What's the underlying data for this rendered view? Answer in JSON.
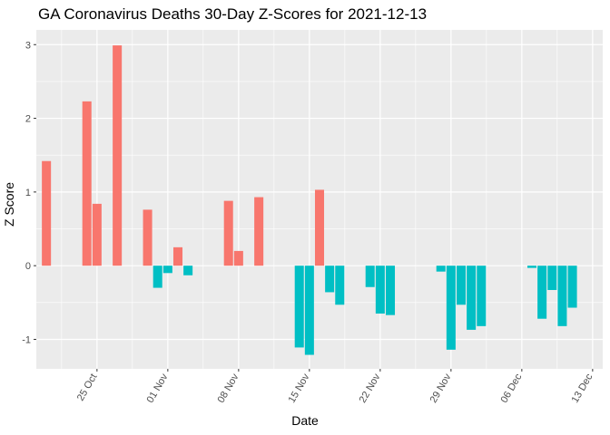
{
  "chart_data": {
    "type": "bar",
    "title": "GA Coronavirus Deaths 30-Day Z-Scores for 2021-12-13",
    "xlabel": "Date",
    "ylabel": "Z Score",
    "x_ticks": [
      {
        "date": "2021-10-25",
        "label": "25 Oct"
      },
      {
        "date": "2021-11-01",
        "label": "01 Nov"
      },
      {
        "date": "2021-11-08",
        "label": "08 Nov"
      },
      {
        "date": "2021-11-15",
        "label": "15 Nov"
      },
      {
        "date": "2021-11-22",
        "label": "22 Nov"
      },
      {
        "date": "2021-11-29",
        "label": "29 Nov"
      },
      {
        "date": "2021-12-06",
        "label": "06 Dec"
      },
      {
        "date": "2021-12-13",
        "label": "13 Dec"
      }
    ],
    "xlim": [
      "2021-10-19",
      "2021-12-14"
    ],
    "y_ticks": [
      -1,
      0,
      1,
      2,
      3
    ],
    "ylim": [
      -1.4,
      3.2
    ],
    "grid": true,
    "colors": {
      "positive": "#f8766d",
      "negative": "#00bfc4",
      "panel": "#ebebeb",
      "grid": "#ffffff"
    },
    "points": [
      {
        "date": "2021-10-20",
        "value": 1.42
      },
      {
        "date": "2021-10-24",
        "value": 2.23
      },
      {
        "date": "2021-10-25",
        "value": 0.84
      },
      {
        "date": "2021-10-27",
        "value": 2.99
      },
      {
        "date": "2021-10-30",
        "value": 0.76
      },
      {
        "date": "2021-10-31",
        "value": -0.3
      },
      {
        "date": "2021-11-01",
        "value": -0.1
      },
      {
        "date": "2021-11-02",
        "value": 0.25
      },
      {
        "date": "2021-11-03",
        "value": -0.13
      },
      {
        "date": "2021-11-07",
        "value": 0.88
      },
      {
        "date": "2021-11-08",
        "value": 0.2
      },
      {
        "date": "2021-11-10",
        "value": 0.93
      },
      {
        "date": "2021-11-14",
        "value": -1.11
      },
      {
        "date": "2021-11-15",
        "value": -1.21
      },
      {
        "date": "2021-11-16",
        "value": 1.03
      },
      {
        "date": "2021-11-17",
        "value": -0.36
      },
      {
        "date": "2021-11-18",
        "value": -0.53
      },
      {
        "date": "2021-11-21",
        "value": -0.29
      },
      {
        "date": "2021-11-22",
        "value": -0.65
      },
      {
        "date": "2021-11-23",
        "value": -0.67
      },
      {
        "date": "2021-11-28",
        "value": -0.08
      },
      {
        "date": "2021-11-29",
        "value": -1.14
      },
      {
        "date": "2021-11-30",
        "value": -0.53
      },
      {
        "date": "2021-12-01",
        "value": -0.87
      },
      {
        "date": "2021-12-02",
        "value": -0.82
      },
      {
        "date": "2021-12-07",
        "value": -0.03
      },
      {
        "date": "2021-12-08",
        "value": -0.72
      },
      {
        "date": "2021-12-09",
        "value": -0.33
      },
      {
        "date": "2021-12-10",
        "value": -0.82
      },
      {
        "date": "2021-12-11",
        "value": -0.57
      }
    ]
  }
}
